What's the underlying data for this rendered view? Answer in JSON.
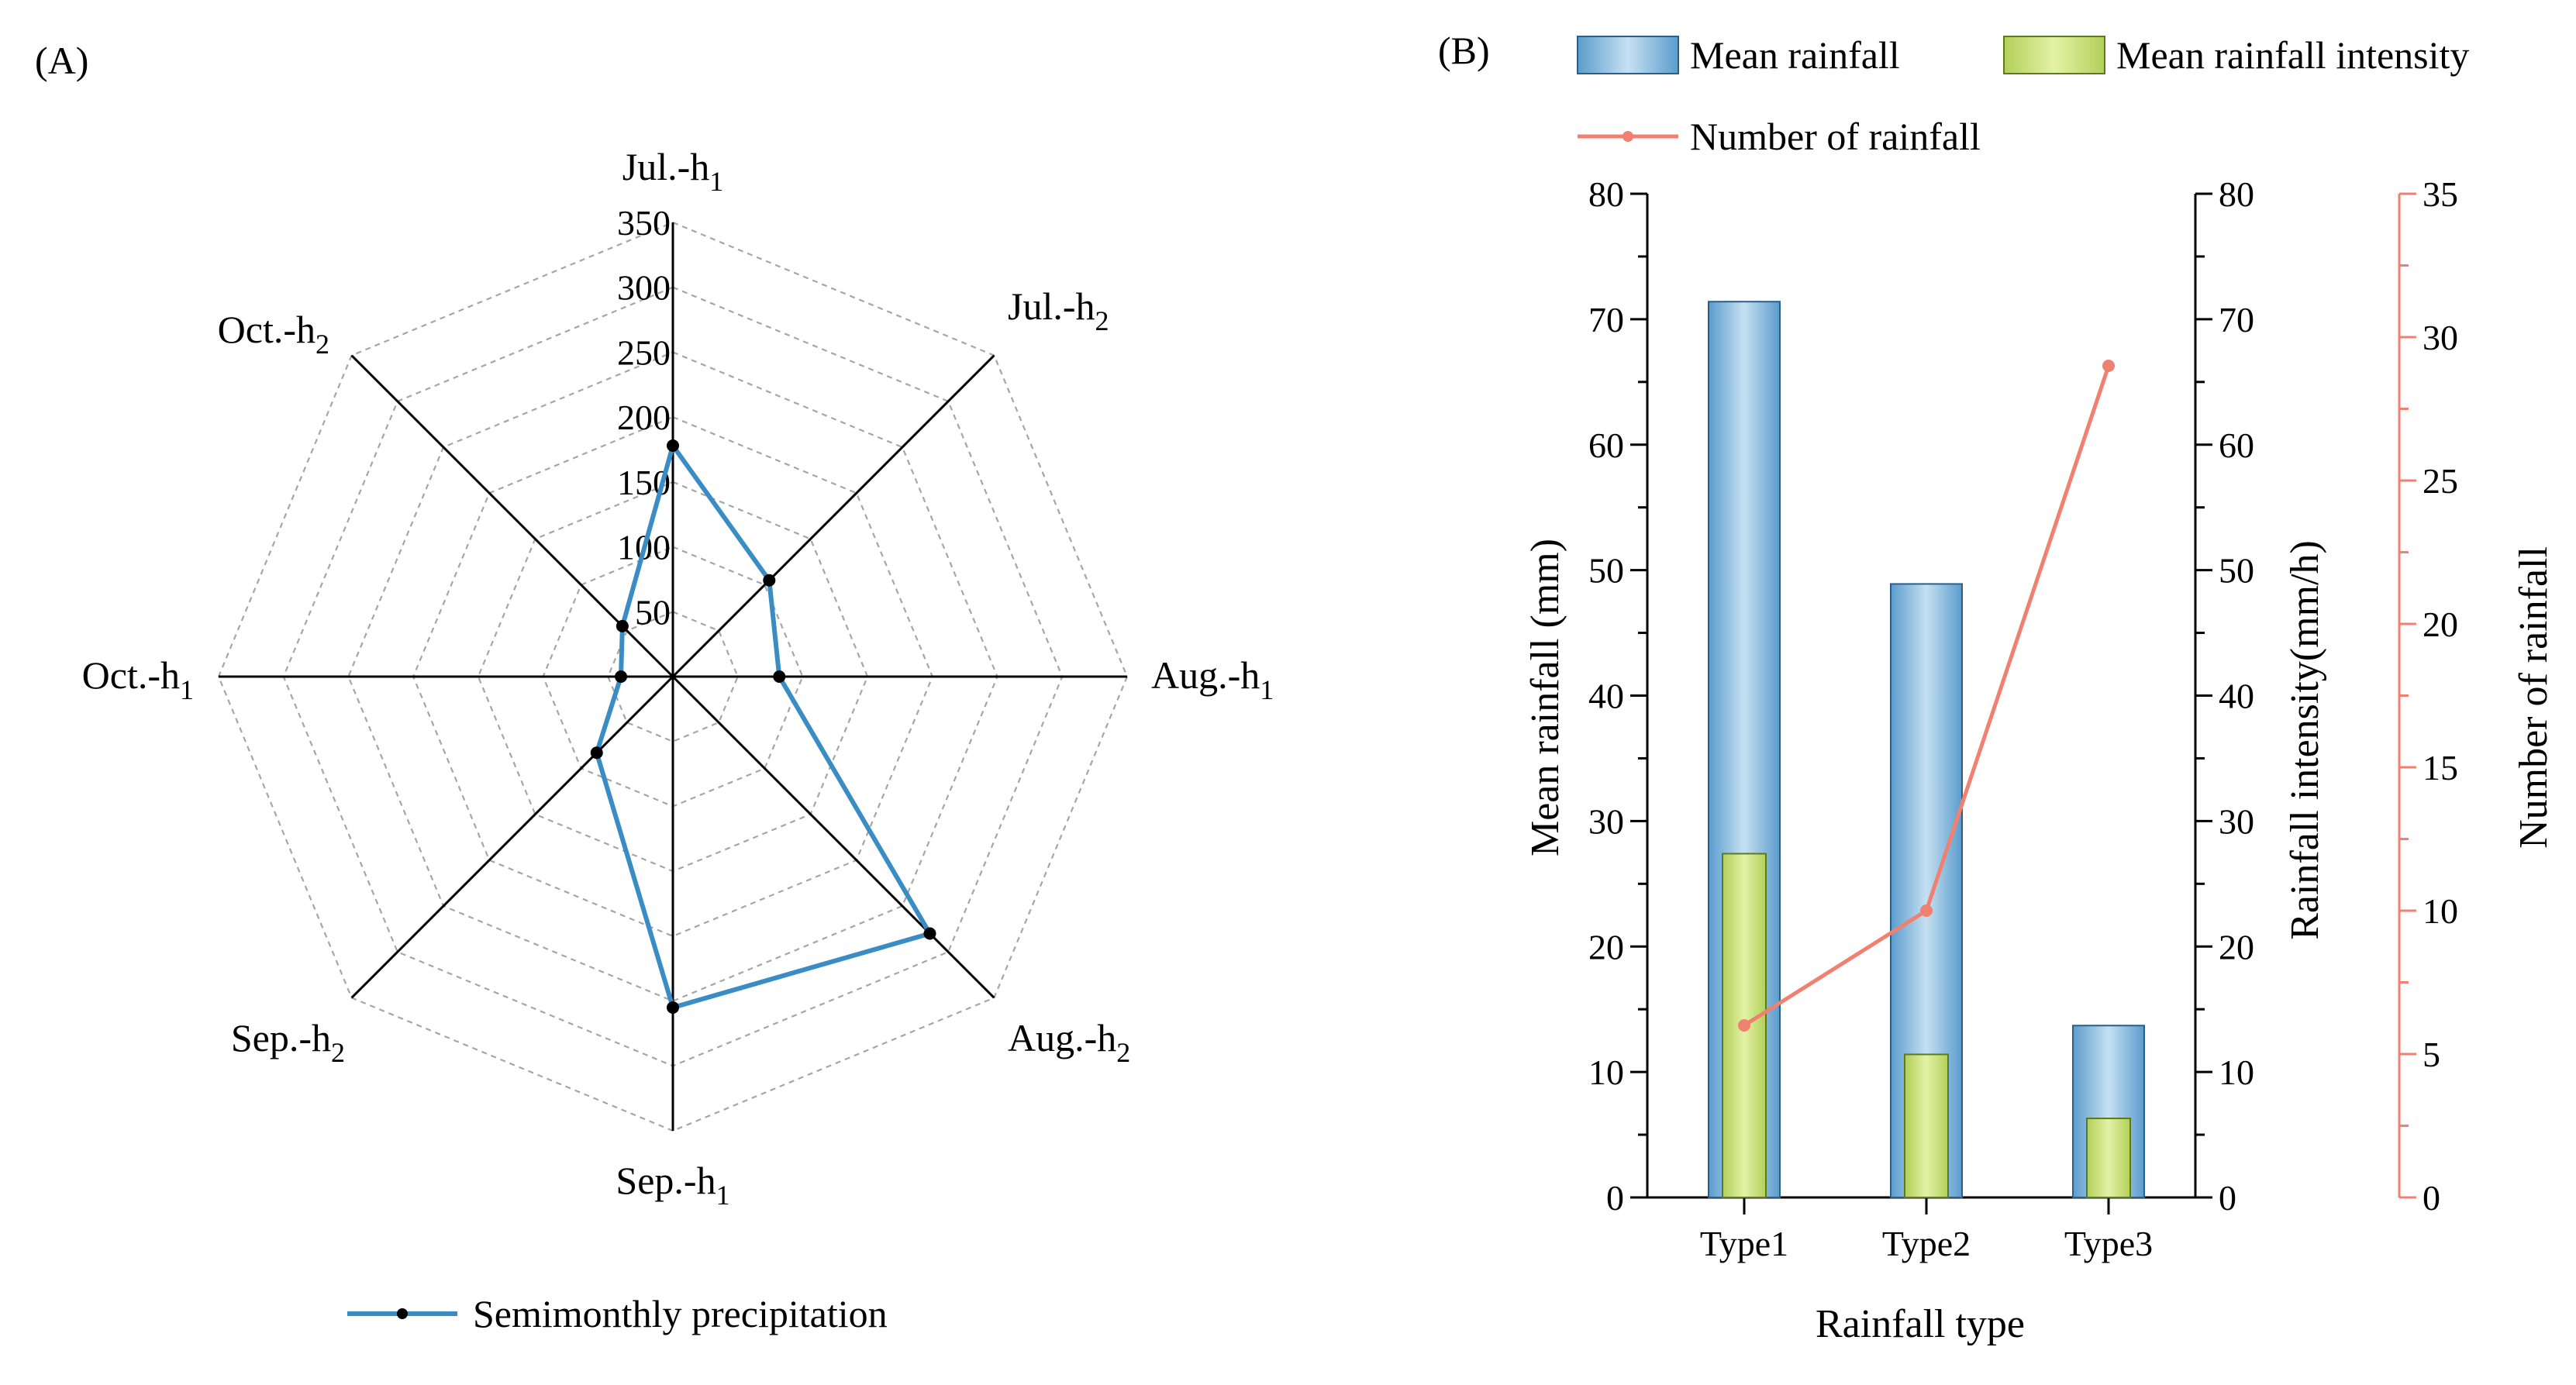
{
  "chart_data": [
    {
      "panel_label": "(A)",
      "type": "radar",
      "title": "",
      "rlim": [
        0,
        350
      ],
      "rticks": [
        "50",
        "100",
        "150",
        "200",
        "250",
        "300",
        "350"
      ],
      "grid": true,
      "categories": [
        {
          "name": "Jul.-h",
          "sub": "1"
        },
        {
          "name": "Jul.-h",
          "sub": "2"
        },
        {
          "name": "Aug.-h",
          "sub": "1"
        },
        {
          "name": "Aug.-h",
          "sub": "2"
        },
        {
          "name": "Sep.-h",
          "sub": "1"
        },
        {
          "name": "Sep.-h",
          "sub": "2"
        },
        {
          "name": "Oct.-h",
          "sub": "1"
        },
        {
          "name": "Oct.-h",
          "sub": "2"
        }
      ],
      "series": [
        {
          "name": "Semimonthly precipitation",
          "color": "#3a8cc4",
          "values": [
            178,
            105,
            82,
            280,
            255,
            83,
            40,
            55
          ]
        }
      ],
      "legend_position": "bottom-center"
    },
    {
      "panel_label": "(B)",
      "type": "bar+line",
      "categories": [
        "Type1",
        "Type2",
        "Type3"
      ],
      "xlabel": "Rainfall type",
      "y_left": {
        "label": "Mean rainfall (mm)",
        "lim": [
          0,
          80
        ],
        "ticks": [
          "0",
          "10",
          "20",
          "30",
          "40",
          "50",
          "60",
          "70",
          "80"
        ]
      },
      "y_mid": {
        "label": "Rainfall intensity(mm/h)",
        "lim": [
          0,
          80
        ],
        "ticks": [
          "0",
          "10",
          "20",
          "30",
          "40",
          "50",
          "60",
          "70",
          "80"
        ]
      },
      "y_right": {
        "label": "Number of rainfall",
        "lim": [
          0,
          35
        ],
        "ticks": [
          "0",
          "5",
          "10",
          "15",
          "20",
          "25",
          "30",
          "35"
        ],
        "color": "#f08070"
      },
      "series": [
        {
          "name": "Mean rainfall",
          "type": "bar",
          "axis": "y_left",
          "color": "#7fb6dc",
          "values": [
            71.4,
            48.9,
            13.7
          ]
        },
        {
          "name": "Mean rainfall intensity",
          "type": "bar",
          "axis": "y_mid",
          "color": "#c2db74",
          "values": [
            27.4,
            11.4,
            6.3
          ]
        },
        {
          "name": "Number of rainfall",
          "type": "line",
          "axis": "y_right",
          "color": "#f08070",
          "values": [
            6,
            10,
            29
          ]
        }
      ],
      "legend_position": "top"
    }
  ]
}
